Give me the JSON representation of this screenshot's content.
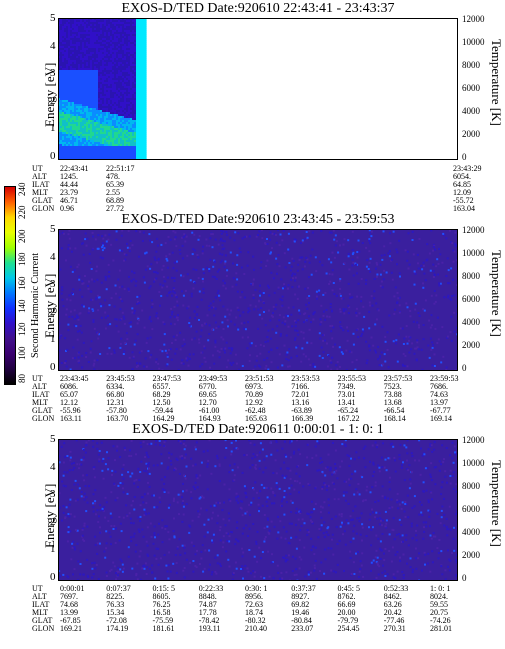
{
  "colorbar": {
    "title": "Second Harmonic Current",
    "ticks": [
      "240",
      "220",
      "200",
      "180",
      "160",
      "140",
      "120",
      "100",
      "80"
    ],
    "colors": [
      "#d40000",
      "#ff6000",
      "#ffd800",
      "#e8ff00",
      "#a0ff00",
      "#20e090",
      "#00c8e8",
      "#0078ff",
      "#1030ff",
      "#3010c8",
      "#40108c",
      "#3a0070",
      "#200040",
      "#000000"
    ]
  },
  "panels": [
    {
      "title": "EXOS-D/TED   Date:920610  22:43:41 - 23:43:37",
      "y_label": "Energy [eV]",
      "y2_label": "Temperature [K]",
      "y_ticks": [
        "5",
        "4",
        "3",
        "2",
        "1",
        "0"
      ],
      "y2_ticks": [
        "12000",
        "10000",
        "8000",
        "6000",
        "4000",
        "2000",
        "0"
      ],
      "row_labels": [
        "UT",
        "ALT",
        "ILAT",
        "MLT",
        "GLAT",
        "GLON"
      ],
      "columns": [
        {
          "UT": "22:43:41",
          "ALT": "1245.",
          "ILAT": "44.44",
          "MLT": "23.79",
          "GLAT": "46.71",
          "GLON": "0.96"
        },
        {
          "UT": "22:51:17",
          "ALT": "478.",
          "ILAT": "65.39",
          "MLT": "2.55",
          "GLAT": "68.89",
          "GLON": "27.72"
        },
        {
          "UT": "23:43:29",
          "ALT": "6054.",
          "ILAT": "64.85",
          "MLT": "12.09",
          "GLAT": "-55.72",
          "GLON": "163.04"
        }
      ]
    },
    {
      "title": "EXOS-D/TED   Date:920610  23:43:45 - 23:59:53",
      "y_label": "Energy [eV]",
      "y2_label": "Temperature [K]",
      "y_ticks": [
        "5",
        "4",
        "3",
        "2",
        "1",
        "0"
      ],
      "y2_ticks": [
        "12000",
        "10000",
        "8000",
        "6000",
        "4000",
        "2000",
        "0"
      ],
      "row_labels": [
        "UT",
        "ALT",
        "ILAT",
        "MLT",
        "GLAT",
        "GLON"
      ],
      "columns": [
        {
          "UT": "23:43:45",
          "ALT": "6086.",
          "ILAT": "65.07",
          "MLT": "12.12",
          "GLAT": "-55.96",
          "GLON": "163.11"
        },
        {
          "UT": "23:45:53",
          "ALT": "6334.",
          "ILAT": "66.80",
          "MLT": "12.31",
          "GLAT": "-57.80",
          "GLON": "163.70"
        },
        {
          "UT": "23:47:53",
          "ALT": "6557.",
          "ILAT": "68.29",
          "MLT": "12.50",
          "GLAT": "-59.44",
          "GLON": "164.29"
        },
        {
          "UT": "23:49:53",
          "ALT": "6770.",
          "ILAT": "69.65",
          "MLT": "12.70",
          "GLAT": "-61.00",
          "GLON": "164.93"
        },
        {
          "UT": "23:51:53",
          "ALT": "6973.",
          "ILAT": "70.89",
          "MLT": "12.92",
          "GLAT": "-62.48",
          "GLON": "165.63"
        },
        {
          "UT": "23:53:53",
          "ALT": "7166.",
          "ILAT": "72.01",
          "MLT": "13.16",
          "GLAT": "-63.89",
          "GLON": "166.39"
        },
        {
          "UT": "23:55:53",
          "ALT": "7349.",
          "ILAT": "73.01",
          "MLT": "13.41",
          "GLAT": "-65.24",
          "GLON": "167.22"
        },
        {
          "UT": "23:57:53",
          "ALT": "7523.",
          "ILAT": "73.88",
          "MLT": "13.68",
          "GLAT": "-66.54",
          "GLON": "168.14"
        },
        {
          "UT": "23:59:53",
          "ALT": "7686.",
          "ILAT": "74.63",
          "MLT": "13.97",
          "GLAT": "-67.77",
          "GLON": "169.14"
        }
      ]
    },
    {
      "title": "EXOS-D/TED   Date:920611   0:00:01 - 1: 0: 1",
      "y_label": "Energy [eV]",
      "y2_label": "Temperature [K]",
      "y_ticks": [
        "5",
        "4",
        "3",
        "2",
        "1",
        "0"
      ],
      "y2_ticks": [
        "12000",
        "10000",
        "8000",
        "6000",
        "4000",
        "2000",
        "0"
      ],
      "row_labels": [
        "UT",
        "ALT",
        "ILAT",
        "MLT",
        "GLAT",
        "GLON"
      ],
      "columns": [
        {
          "UT": "0:00:01",
          "ALT": "7697.",
          "ILAT": "74.68",
          "MLT": "13.99",
          "GLAT": "-67.85",
          "GLON": "169.21"
        },
        {
          "UT": "0:07:37",
          "ALT": "8225.",
          "ILAT": "76.33",
          "MLT": "15.34",
          "GLAT": "-72.08",
          "GLON": "174.19"
        },
        {
          "UT": "0:15: 5",
          "ALT": "8605.",
          "ILAT": "76.25",
          "MLT": "16.58",
          "GLAT": "-75.59",
          "GLON": "181.61"
        },
        {
          "UT": "0:22:33",
          "ALT": "8848.",
          "ILAT": "74.87",
          "MLT": "17.78",
          "GLAT": "-78.42",
          "GLON": "193.11"
        },
        {
          "UT": "0:30: 1",
          "ALT": "8956.",
          "ILAT": "72.63",
          "MLT": "18.74",
          "GLAT": "-80.32",
          "GLON": "210.40"
        },
        {
          "UT": "0:37:37",
          "ALT": "8927.",
          "ILAT": "69.82",
          "MLT": "19.46",
          "GLAT": "-80.84",
          "GLON": "233.07"
        },
        {
          "UT": "0:45: 5",
          "ALT": "8762.",
          "ILAT": "66.69",
          "MLT": "20.00",
          "GLAT": "-79.79",
          "GLON": "254.45"
        },
        {
          "UT": "0:52:33",
          "ALT": "8462.",
          "ILAT": "63.26",
          "MLT": "20.42",
          "GLAT": "-77.46",
          "GLON": "270.31"
        },
        {
          "UT": "1: 0: 1",
          "ALT": "8024.",
          "ILAT": "59.55",
          "MLT": "20.75",
          "GLAT": "-74.26",
          "GLON": "281.01"
        }
      ]
    }
  ],
  "chart_data": [
    {
      "type": "heatmap",
      "title": "EXOS-D/TED   Date:920610  22:43:41 - 23:43:37",
      "xlabel": "UT",
      "ylabel": "Energy [eV]",
      "y2label": "Temperature [K]",
      "ylim": [
        0,
        5
      ],
      "y2lim": [
        0,
        12000
      ],
      "x": [
        "22:43:41",
        "22:51:17",
        "23:43:29"
      ]
    },
    {
      "type": "heatmap",
      "title": "EXOS-D/TED   Date:920610  23:43:45 - 23:59:53",
      "xlabel": "UT",
      "ylabel": "Energy [eV]",
      "y2label": "Temperature [K]",
      "ylim": [
        0,
        5
      ],
      "y2lim": [
        0,
        12000
      ],
      "x": [
        "23:43:45",
        "23:45:53",
        "23:47:53",
        "23:49:53",
        "23:51:53",
        "23:53:53",
        "23:55:53",
        "23:57:53",
        "23:59:53"
      ]
    },
    {
      "type": "heatmap",
      "title": "EXOS-D/TED   Date:920611   0:00:01 - 1: 0: 1",
      "xlabel": "UT",
      "ylabel": "Energy [eV]",
      "y2label": "Temperature [K]",
      "ylim": [
        0,
        5
      ],
      "y2lim": [
        0,
        12000
      ],
      "x": [
        "0:00:01",
        "0:07:37",
        "0:15: 5",
        "0:22:33",
        "0:30: 1",
        "0:37:37",
        "0:45: 5",
        "0:52:33",
        "1: 0: 1"
      ]
    }
  ]
}
